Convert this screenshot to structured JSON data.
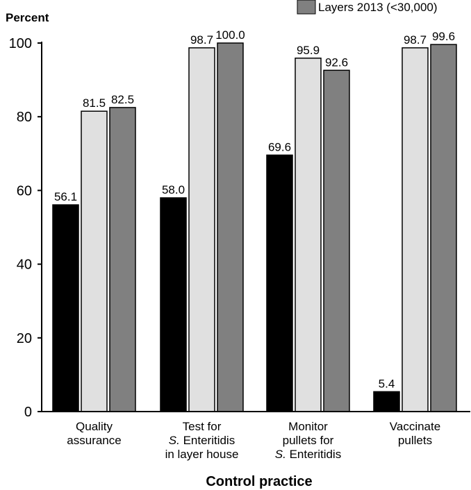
{
  "chart_data": {
    "type": "bar",
    "ylabel": "Percent",
    "xlabel": "Control practice",
    "ylim": [
      0,
      100
    ],
    "yticks": [
      0,
      20,
      40,
      60,
      80,
      100
    ],
    "categories": [
      [
        "Quality",
        "assurance"
      ],
      [
        "Test for",
        "S. Enteritidis",
        "in layer house"
      ],
      [
        "Monitor",
        "pullets for",
        "S. Enteritidis"
      ],
      [
        "Vaccinate",
        "pullets"
      ]
    ],
    "series": [
      {
        "color": "#000000",
        "values": [
          56.1,
          58.0,
          69.6,
          5.4
        ],
        "labels": [
          "56.1",
          "58.0",
          "69.6",
          "5.4"
        ]
      },
      {
        "color": "#e0e0e0",
        "values": [
          81.5,
          98.7,
          95.9,
          98.7
        ],
        "labels": [
          "81.5",
          "98.7",
          "95.9",
          "98.7"
        ]
      },
      {
        "name": "Layers 2013 (<30,000)",
        "color": "#808080",
        "values": [
          82.5,
          100.0,
          92.6,
          99.6
        ],
        "labels": [
          "82.5",
          "100.0",
          "92.6",
          "99.6"
        ]
      }
    ],
    "legend": "top-right",
    "grid": false
  }
}
